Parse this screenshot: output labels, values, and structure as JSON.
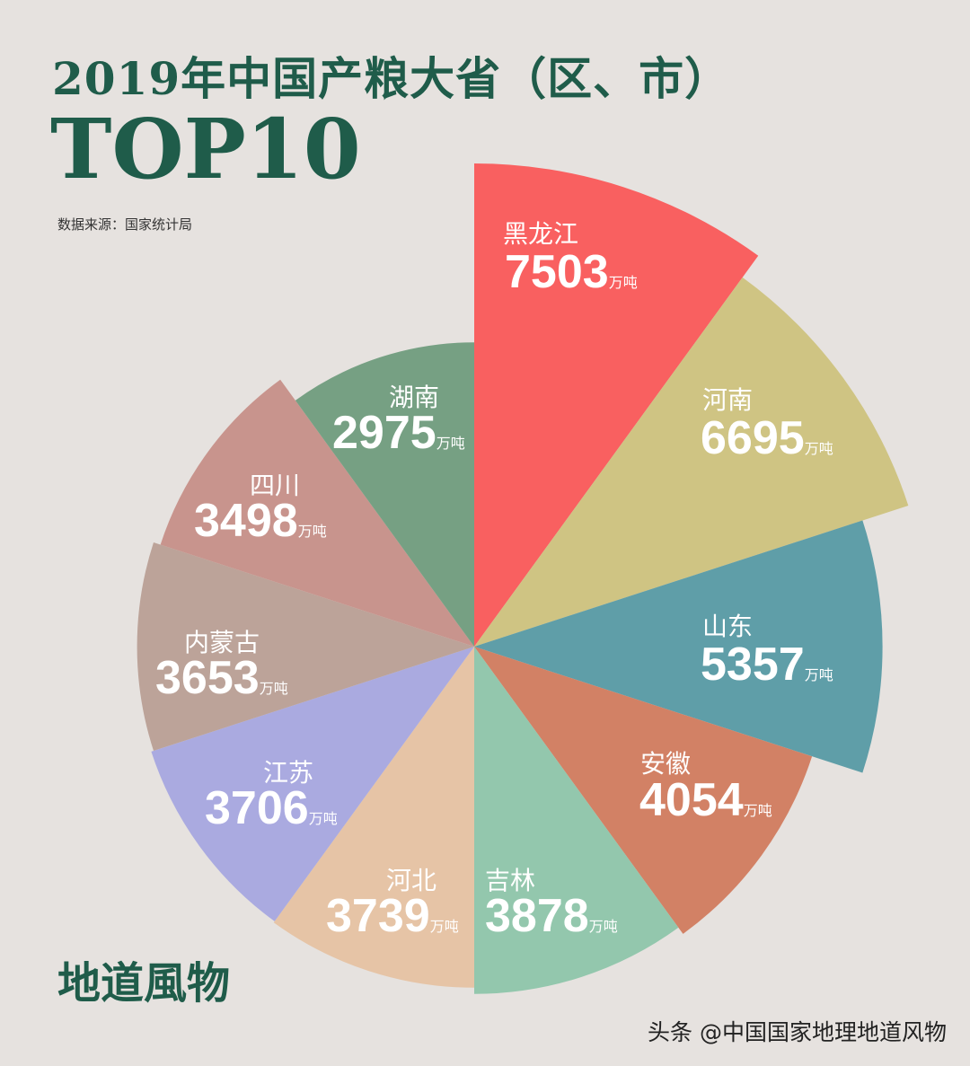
{
  "header": {
    "title": "2019年中国产粮大省（区、市）",
    "subtitle": "TOP10",
    "source": "数据来源：国家统计局"
  },
  "brand": "地道風物",
  "watermark": "头条 @中国国家地理地道风物",
  "chart_data": {
    "type": "polar-area",
    "unit": "万吨",
    "radius_scale": "sqrt",
    "categories": [
      "黑龙江",
      "河南",
      "山东",
      "安徽",
      "吉林",
      "河北",
      "江苏",
      "内蒙古",
      "四川",
      "湖南"
    ],
    "values": [
      7503,
      6695,
      5357,
      4054,
      3878,
      3739,
      3706,
      3653,
      3498,
      2975
    ],
    "colors": [
      "#f96060",
      "#cfc483",
      "#5f9ea8",
      "#d28165",
      "#93c7ad",
      "#e6c4a6",
      "#aaaae0",
      "#bca399",
      "#c8948d",
      "#76a083"
    ]
  }
}
